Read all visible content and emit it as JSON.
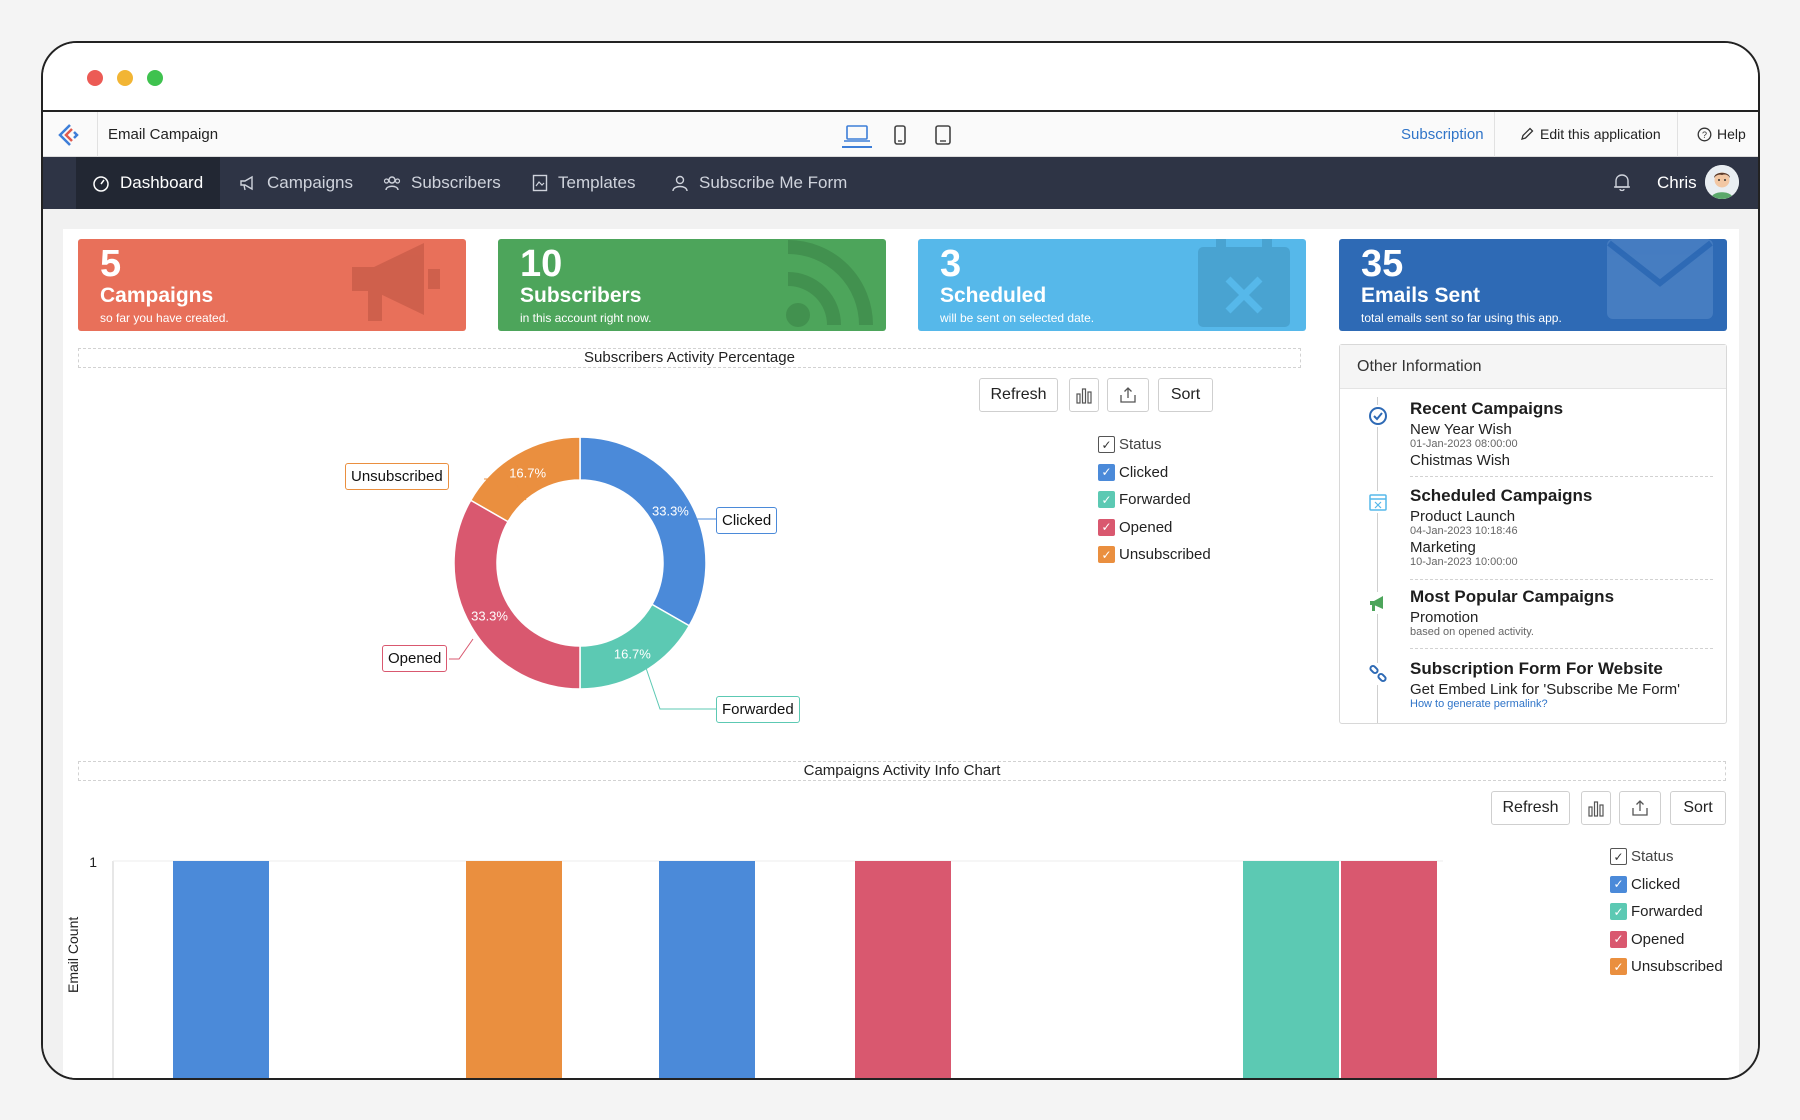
{
  "window": {
    "app_title": "Email Campaign"
  },
  "appbar": {
    "subscription": "Subscription",
    "edit": "Edit this application",
    "help": "Help"
  },
  "nav": {
    "items": [
      {
        "label": "Dashboard",
        "icon": "dashboard-icon"
      },
      {
        "label": "Campaigns",
        "icon": "megaphone-icon"
      },
      {
        "label": "Subscribers",
        "icon": "users-icon"
      },
      {
        "label": "Templates",
        "icon": "template-icon"
      },
      {
        "label": "Subscribe Me Form",
        "icon": "user-form-icon"
      }
    ],
    "user": "Chris"
  },
  "stats": [
    {
      "num": "5",
      "label": "Campaigns",
      "sub": "so far you have created.",
      "color": "#e8705a"
    },
    {
      "num": "10",
      "label": "Subscribers",
      "sub": "in this account right now.",
      "color": "#4da55b"
    },
    {
      "num": "3",
      "label": "Scheduled",
      "sub": "will be sent on selected date.",
      "color": "#56b8ea"
    },
    {
      "num": "35",
      "label": "Emails Sent",
      "sub": "total emails sent so far using this app.",
      "color": "#2e6ab5"
    }
  ],
  "donut_section": {
    "title": "Subscribers Activity Percentage",
    "refresh": "Refresh",
    "sort": "Sort"
  },
  "bar_section": {
    "title": "Campaigns Activity Info Chart",
    "refresh": "Refresh",
    "sort": "Sort"
  },
  "legend": {
    "status": "Status",
    "items": [
      "Clicked",
      "Forwarded",
      "Opened",
      "Unsubscribed"
    ]
  },
  "colors": {
    "clicked": "#4b8ad9",
    "forwarded": "#5cc9b3",
    "opened": "#d9586f",
    "unsubscribed": "#ea8f3f"
  },
  "chart_data": [
    {
      "type": "pie",
      "title": "Subscribers Activity Percentage",
      "categories": [
        "Clicked",
        "Forwarded",
        "Opened",
        "Unsubscribed"
      ],
      "values": [
        33.3,
        16.7,
        33.3,
        16.7
      ],
      "labels": [
        "33.3%",
        "16.7%",
        "33.3%",
        "16.7%"
      ],
      "legend": "right"
    },
    {
      "type": "bar",
      "title": "Campaigns Activity Info Chart",
      "ylabel": "Email Count",
      "yticks": [
        "1"
      ],
      "ylim": [
        0,
        1
      ],
      "bars": [
        {
          "series": "Clicked",
          "value": 1
        },
        {
          "series": "Unsubscribed",
          "value": 1
        },
        {
          "series": "Clicked",
          "value": 1
        },
        {
          "series": "Opened",
          "value": 1
        },
        {
          "series": "Forwarded",
          "value": 1
        },
        {
          "series": "Opened",
          "value": 1
        }
      ],
      "legend": "right"
    }
  ],
  "info": {
    "header": "Other Information",
    "recent": {
      "title": "Recent Campaigns",
      "item1": "New Year Wish",
      "date1": "01-Jan-2023 08:00:00",
      "item2": "Chistmas Wish"
    },
    "scheduled": {
      "title": "Scheduled Campaigns",
      "item1": "Product Launch",
      "date1": "04-Jan-2023 10:18:46",
      "item2": "Marketing",
      "date2": "10-Jan-2023 10:00:00"
    },
    "popular": {
      "title": "Most Popular Campaigns",
      "item1": "Promotion",
      "note": "based on opened activity."
    },
    "form": {
      "title": "Subscription Form For Website",
      "item1": "Get Embed Link for 'Subscribe Me Form'",
      "link": "How to generate permalink?"
    }
  }
}
